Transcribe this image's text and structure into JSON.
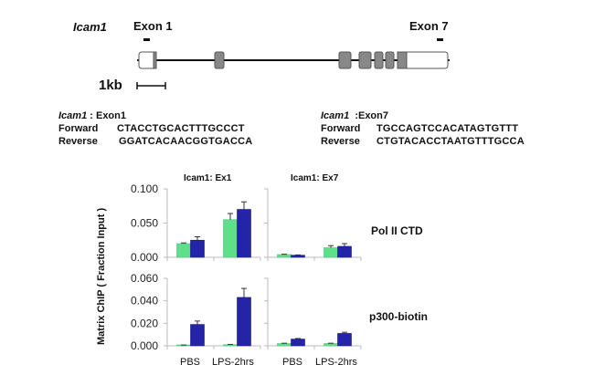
{
  "gene_diagram": {
    "gene_name": "Icam1",
    "exon1_label": "Exon 1",
    "exon7_label": "Exon 7",
    "scale_label": "1kb",
    "exons": [
      {
        "x": 152,
        "w": 19,
        "utr_w": 16
      },
      {
        "x": 235,
        "w": 10
      },
      {
        "x": 371,
        "w": 13
      },
      {
        "x": 393,
        "w": 13
      },
      {
        "x": 410,
        "w": 9
      },
      {
        "x": 422,
        "w": 9
      },
      {
        "x": 435,
        "w": 55,
        "coding_w": 10
      }
    ],
    "colors": {
      "exon_fill": "#888888",
      "utr_fill": "#ffffff",
      "line": "#111111"
    }
  },
  "primers": {
    "exon1": {
      "gene": "Icam1",
      "target": " : Exon1",
      "forward_label": "Forward",
      "forward_seq": "CTACCTGCACTTTGCCCT",
      "reverse_label": "Reverse",
      "reverse_seq": "GGATCACAACGGTGACCA"
    },
    "exon7": {
      "gene": "Icam1",
      "target": "  :Exon7",
      "forward_label": "Forward",
      "forward_seq": "TGCCAGTCCACATAGTGTTT",
      "reverse_label": "Reverse",
      "reverse_seq": "CTGTACACCTAATGTTTGCCA"
    }
  },
  "chart_data": {
    "type": "bar",
    "ylabel": "Matrix ChIP ( Fraction Input )",
    "columns": [
      "Icam1: Ex1",
      "Icam1: Ex7"
    ],
    "rows": [
      "Pol II CTD",
      "p300-biotin"
    ],
    "categories": [
      "PBS",
      "LPS-2hrs"
    ],
    "colors": {
      "green": "#5ee08a",
      "blue": "#2424a8"
    },
    "panels": [
      {
        "row": "Pol II CTD",
        "column": "Icam1: Ex1",
        "ylim": [
          0,
          0.1
        ],
        "yticks": [
          "0.000",
          "0.050",
          "0.100"
        ],
        "series": [
          {
            "name": "green",
            "values": [
              0.02,
              0.055
            ],
            "errors": [
              0.001,
              0.009
            ]
          },
          {
            "name": "blue",
            "values": [
              0.025,
              0.07
            ],
            "errors": [
              0.005,
              0.011
            ]
          }
        ]
      },
      {
        "row": "Pol II CTD",
        "column": "Icam1: Ex7",
        "ylim": [
          0,
          0.1
        ],
        "series": [
          {
            "name": "green",
            "values": [
              0.004,
              0.014
            ],
            "errors": [
              0.0005,
              0.003
            ]
          },
          {
            "name": "blue",
            "values": [
              0.003,
              0.016
            ],
            "errors": [
              0.0005,
              0.004
            ]
          }
        ]
      },
      {
        "row": "p300-biotin",
        "column": "Icam1: Ex1",
        "ylim": [
          0,
          0.06
        ],
        "yticks": [
          "0.000",
          "0.020",
          "0.040",
          "0.060"
        ],
        "series": [
          {
            "name": "green",
            "values": [
              0.0005,
              0.001
            ],
            "errors": [
              0.0002,
              0.0002
            ]
          },
          {
            "name": "blue",
            "values": [
              0.019,
              0.043
            ],
            "errors": [
              0.003,
              0.008
            ]
          }
        ]
      },
      {
        "row": "p300-biotin",
        "column": "Icam1: Ex7",
        "ylim": [
          0,
          0.06
        ],
        "series": [
          {
            "name": "green",
            "values": [
              0.002,
              0.002
            ],
            "errors": [
              0.0003,
              0.0003
            ]
          },
          {
            "name": "blue",
            "values": [
              0.006,
              0.011
            ],
            "errors": [
              0.0005,
              0.001
            ]
          }
        ]
      }
    ]
  }
}
